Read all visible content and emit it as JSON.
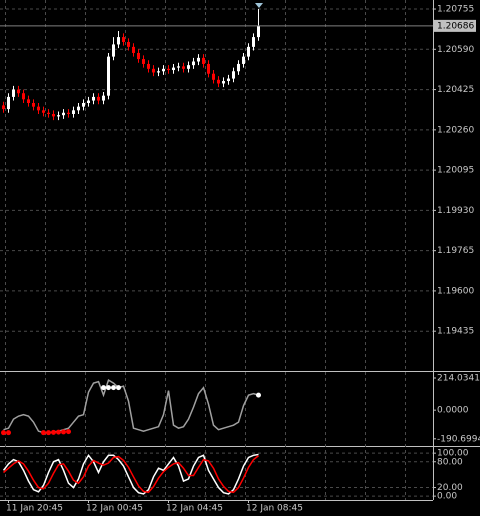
{
  "chart_data": [
    {
      "type": "candlestick",
      "up_color": "#ffffff",
      "down_color": "#ff0000",
      "grid": true,
      "categories": [
        null,
        "11 Jan 20:45",
        null,
        null,
        null,
        null,
        null,
        null,
        null,
        null,
        null,
        null,
        null,
        null,
        null,
        null,
        null,
        "12 Jan 00:45",
        null,
        null,
        null,
        null,
        null,
        null,
        null,
        null,
        null,
        null,
        null,
        null,
        null,
        null,
        null,
        "12 Jan 04:45",
        null,
        null,
        null,
        null,
        null,
        null,
        null,
        null,
        null,
        null,
        null,
        null,
        null,
        null,
        null,
        "12 Jan 08:45",
        null,
        null
      ],
      "open": [
        1.2036,
        1.20345,
        1.20395,
        1.20425,
        1.2041,
        1.20385,
        1.2037,
        1.20355,
        1.2034,
        1.2033,
        1.20325,
        1.20315,
        1.2032,
        1.2033,
        1.20325,
        1.2034,
        1.20355,
        1.2037,
        1.2038,
        1.20395,
        1.2038,
        1.204,
        1.2056,
        1.2061,
        1.2064,
        1.2062,
        1.206,
        1.20575,
        1.2055,
        1.2053,
        1.2051,
        1.20495,
        1.205,
        1.2051,
        1.20505,
        1.20515,
        1.2052,
        1.2051,
        1.20525,
        1.2054,
        1.20555,
        1.2053,
        1.2049,
        1.20465,
        1.2045,
        1.2046,
        1.2047,
        1.205,
        1.2053,
        1.2056,
        1.206,
        1.2064
      ],
      "high": [
        1.20375,
        1.2041,
        1.2044,
        1.2044,
        1.20425,
        1.204,
        1.20385,
        1.2037,
        1.20355,
        1.20345,
        1.2034,
        1.20335,
        1.20345,
        1.20345,
        1.20355,
        1.2037,
        1.20385,
        1.20395,
        1.2041,
        1.2041,
        1.20415,
        1.20575,
        1.2064,
        1.20665,
        1.20655,
        1.20635,
        1.20615,
        1.2059,
        1.20565,
        1.20545,
        1.20525,
        1.20515,
        1.20525,
        1.20525,
        1.2053,
        1.20535,
        1.20535,
        1.2054,
        1.20555,
        1.2057,
        1.2057,
        1.20545,
        1.20505,
        1.2048,
        1.20475,
        1.20485,
        1.20515,
        1.20545,
        1.20575,
        1.20615,
        1.20655,
        1.20755
      ],
      "low": [
        1.2033,
        1.2033,
        1.2038,
        1.20395,
        1.2037,
        1.20355,
        1.2034,
        1.20325,
        1.20315,
        1.2031,
        1.203,
        1.203,
        1.20305,
        1.2031,
        1.2031,
        1.20325,
        1.2034,
        1.20355,
        1.20365,
        1.20365,
        1.20365,
        1.20385,
        1.20545,
        1.20595,
        1.20605,
        1.20585,
        1.2056,
        1.20535,
        1.20515,
        1.20495,
        1.2048,
        1.2048,
        1.20485,
        1.2049,
        1.2049,
        1.205,
        1.20495,
        1.20495,
        1.2051,
        1.20525,
        1.20515,
        1.20475,
        1.2045,
        1.20435,
        1.20435,
        1.20445,
        1.20455,
        1.20485,
        1.20515,
        1.20545,
        1.20585,
        1.20625
      ],
      "close": [
        1.20345,
        1.20395,
        1.20425,
        1.2041,
        1.20385,
        1.2037,
        1.20355,
        1.2034,
        1.2033,
        1.20325,
        1.20315,
        1.2032,
        1.2033,
        1.20325,
        1.2034,
        1.20355,
        1.2037,
        1.2038,
        1.20395,
        1.2038,
        1.204,
        1.2056,
        1.2061,
        1.2064,
        1.2062,
        1.206,
        1.20575,
        1.2055,
        1.2053,
        1.2051,
        1.20495,
        1.205,
        1.2051,
        1.20505,
        1.20515,
        1.2052,
        1.2051,
        1.20525,
        1.2054,
        1.20555,
        1.2053,
        1.2049,
        1.20465,
        1.2045,
        1.2046,
        1.2047,
        1.205,
        1.2053,
        1.2056,
        1.206,
        1.2064,
        1.20686
      ],
      "last_price": 1.20686,
      "ylim": [
        1.19276,
        1.20792
      ],
      "yticks": [
        1.20755,
        {
          "value": 1.2059,
          "label": "1.20590"
        },
        1.20425,
        {
          "value": 1.2026,
          "label": "1.20260"
        },
        1.20095,
        {
          "value": 1.1993,
          "label": "1.19930"
        },
        1.19765,
        {
          "value": 1.196,
          "label": "1.19600"
        },
        1.19435
      ]
    },
    {
      "type": "line",
      "grid": false,
      "ylim": [
        -232,
        254
      ],
      "yticks": [
        214.0341,
        {
          "value": 0,
          "label": "0.0000"
        },
        -190.6994
      ],
      "series": [
        {
          "color": "#a0a0a0",
          "style": "line",
          "values": [
            -130,
            -120,
            -60,
            -40,
            -30,
            -40,
            -80,
            -140,
            -150,
            -150,
            -145,
            -140,
            -130,
            -120,
            -80,
            -40,
            -30,
            120,
            180,
            190,
            100,
            200,
            180,
            150,
            160,
            60,
            -120,
            -130,
            -140,
            -130,
            -120,
            -110,
            -30,
            130,
            -100,
            -120,
            -110,
            -60,
            20,
            110,
            150,
            40,
            -100,
            -130,
            -120,
            -110,
            -100,
            -80,
            30,
            100,
            110,
            100
          ]
        },
        {
          "color": "#ff0000",
          "style": "dots",
          "values": [
            -150,
            -150,
            null,
            null,
            null,
            null,
            null,
            null,
            -150,
            -150,
            -148,
            -146,
            -145,
            -143,
            null,
            null,
            null,
            null,
            null,
            null,
            null,
            null,
            null,
            null,
            null,
            null,
            null,
            null,
            null,
            null,
            null,
            null,
            null,
            null,
            null,
            null,
            null,
            null,
            null,
            null,
            null,
            null,
            null,
            null,
            null,
            null,
            null,
            null,
            null,
            null,
            null,
            null
          ]
        },
        {
          "color": "#ffffff",
          "style": "dots",
          "values": [
            null,
            null,
            null,
            null,
            null,
            null,
            null,
            null,
            null,
            null,
            null,
            null,
            null,
            null,
            null,
            null,
            null,
            null,
            null,
            null,
            150,
            150,
            150,
            150,
            null,
            null,
            null,
            null,
            null,
            null,
            null,
            null,
            null,
            null,
            null,
            null,
            null,
            null,
            null,
            null,
            null,
            null,
            null,
            null,
            null,
            null,
            null,
            null,
            null,
            null,
            null,
            100
          ]
        }
      ]
    },
    {
      "type": "line",
      "grid": true,
      "ylim": [
        -9,
        112
      ],
      "yticks": [
        {
          "value": 100,
          "label": "100.00"
        },
        {
          "value": 80,
          "label": "80.00"
        },
        {
          "value": 20,
          "label": "20.00"
        },
        {
          "value": 0,
          "label": "0.00"
        }
      ],
      "series": [
        {
          "color": "#ffffff",
          "style": "line",
          "values": [
            60,
            75,
            85,
            80,
            60,
            35,
            15,
            10,
            25,
            55,
            80,
            85,
            60,
            30,
            20,
            40,
            75,
            95,
            80,
            55,
            80,
            95,
            95,
            85,
            70,
            45,
            20,
            8,
            5,
            15,
            45,
            65,
            60,
            75,
            90,
            70,
            35,
            40,
            70,
            90,
            95,
            60,
            40,
            20,
            8,
            5,
            15,
            40,
            70,
            90,
            95,
            97
          ]
        },
        {
          "color": "#ff0000",
          "style": "line",
          "values": [
            55,
            65,
            75,
            82,
            75,
            58,
            37,
            20,
            17,
            30,
            53,
            73,
            75,
            58,
            37,
            30,
            45,
            70,
            83,
            77,
            72,
            77,
            90,
            92,
            83,
            67,
            45,
            24,
            11,
            9,
            22,
            42,
            57,
            67,
            75,
            78,
            65,
            48,
            48,
            67,
            85,
            82,
            65,
            40,
            23,
            11,
            9,
            20,
            42,
            67,
            85,
            94
          ]
        }
      ]
    }
  ]
}
